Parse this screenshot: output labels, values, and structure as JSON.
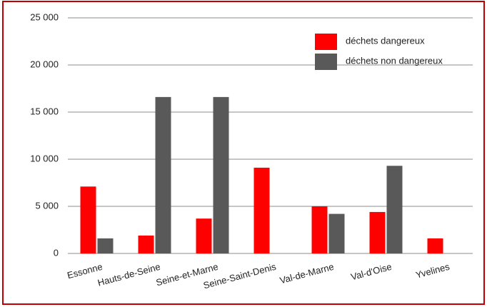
{
  "chart_data": {
    "type": "bar",
    "categories": [
      "Essonne",
      "Hauts-de-Seine",
      "Seine-et-Marne",
      "Seine-Saint-Denis",
      "Val-de-Marne",
      "Val-d'Oise",
      "Yvelines"
    ],
    "series": [
      {
        "name": "déchets dangereux",
        "color": "#ff0000",
        "values": [
          7100,
          1900,
          3700,
          9100,
          5000,
          4400,
          1600
        ]
      },
      {
        "name": "déchets non dangereux",
        "color": "#595959",
        "values": [
          1600,
          16600,
          16600,
          null,
          4200,
          9300,
          null
        ]
      }
    ],
    "ylim": [
      0,
      25000
    ],
    "yticks": [
      {
        "value": 0,
        "label": "0"
      },
      {
        "value": 5000,
        "label": "5 000"
      },
      {
        "value": 10000,
        "label": "10 000"
      },
      {
        "value": 15000,
        "label": "15 000"
      },
      {
        "value": 20000,
        "label": "20 000"
      },
      {
        "value": 25000,
        "label": "25 000"
      }
    ],
    "grid": true,
    "legend": "top-right"
  }
}
